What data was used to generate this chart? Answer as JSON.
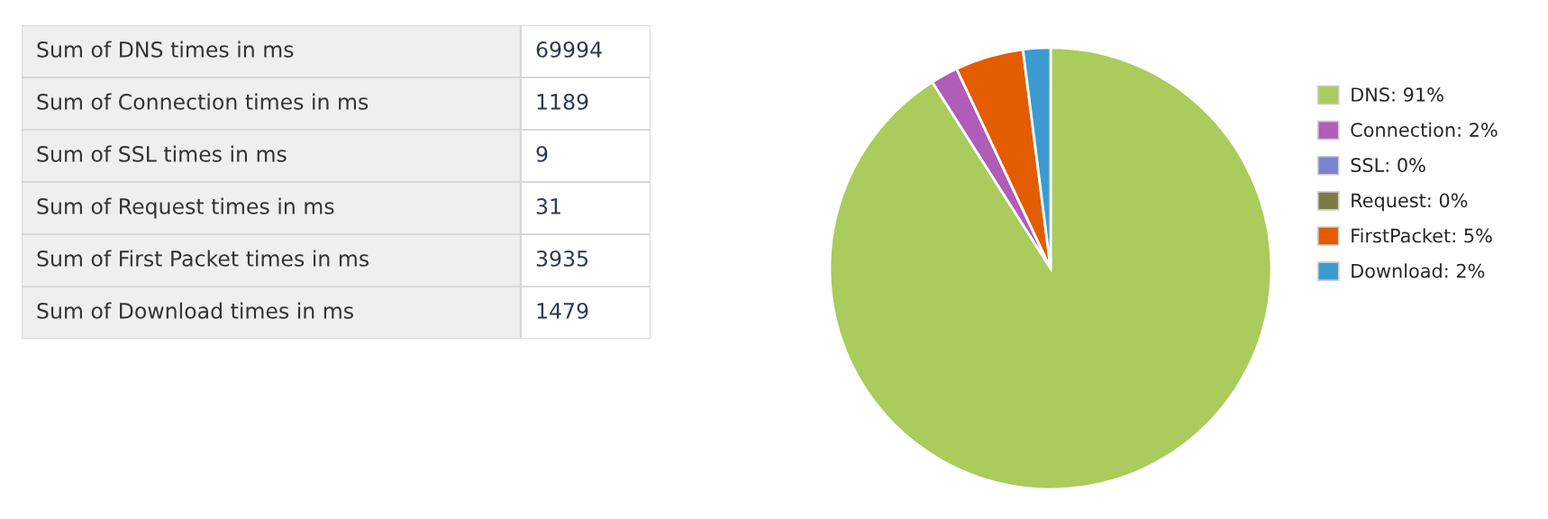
{
  "chart_data": [
    {
      "type": "other",
      "annotations": [
        "Sum of DNS times in ms",
        "69994",
        "Sum of Connection times in ms",
        "1189",
        "Sum of SSL times in ms",
        "9",
        "Sum of Request times in ms",
        "31",
        "Sum of First Packet times in ms",
        "3935",
        "Sum of Download times in ms",
        "1479"
      ]
    },
    {
      "type": "pie",
      "categories": [
        "DNS: 91%",
        "Connection: 2%",
        "SSL: 0%",
        "Request: 0%",
        "FirstPacket: 5%",
        "Download: 2%"
      ],
      "values": [
        91,
        2,
        0,
        0,
        5,
        2
      ],
      "colors": [
        "#a9cc5c",
        "#b05cb8",
        "#7b83d0",
        "#7d7a45",
        "#e35c00",
        "#3b9bd0"
      ],
      "legend": "right"
    }
  ]
}
